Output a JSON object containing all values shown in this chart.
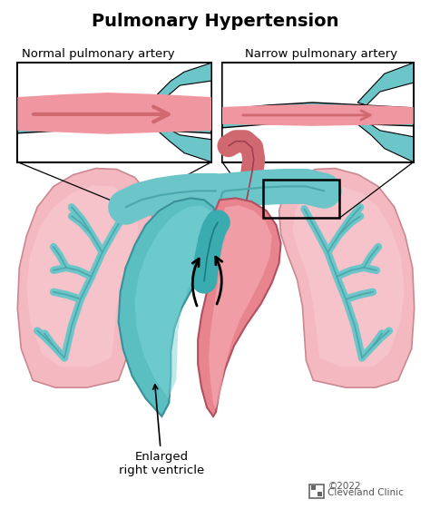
{
  "title": "Pulmonary Hypertension",
  "label_normal": "Normal pulmonary artery",
  "label_narrow": "Narrow pulmonary artery",
  "label_enlarged": "Enlarged\nright ventricle",
  "label_cleveland": "Cleveland Clinic",
  "label_year": "©2022",
  "bg_color": "#ffffff",
  "title_fontsize": 14,
  "label_fontsize": 9.5,
  "teal": "#6cc5c8",
  "teal_dark": "#4aa8ab",
  "teal_vessel": "#5bbfc2",
  "pink_lung": "#f4b8c0",
  "pink_heart": "#e8848e",
  "pink_light": "#f5c8cc",
  "pink_channel": "#f096a0",
  "arrow_pink": "#e87878",
  "dark_teal": "#3a9098",
  "vessel_outline": "#3a9098",
  "heart_red": "#d06870",
  "heart_light": "#f0a8b0"
}
